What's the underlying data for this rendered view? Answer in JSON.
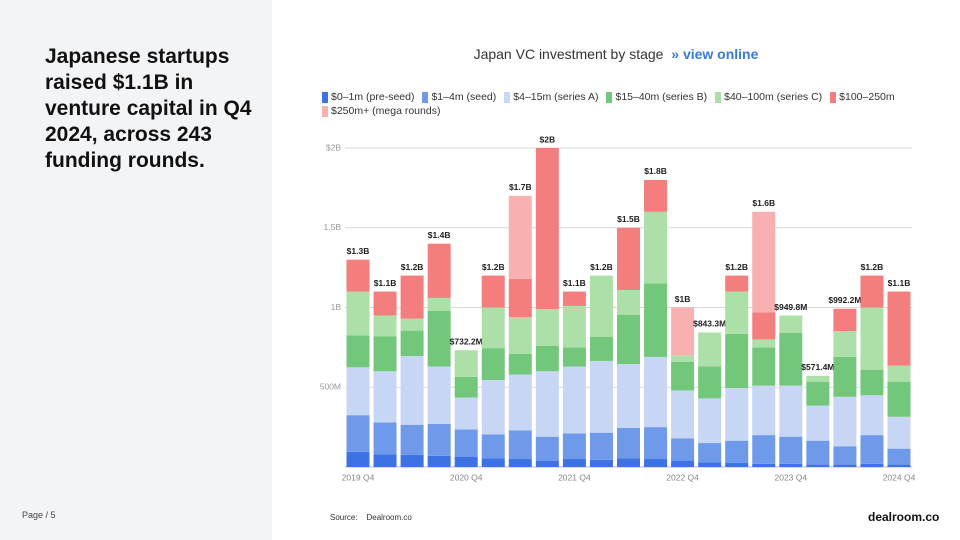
{
  "headline": "Japanese startups raised $1.1B in venture capital in Q4 2024, across 243 funding rounds.",
  "page": "Page / 5",
  "source_label": "Source:",
  "source": "Dealroom.co",
  "logo": "dealroom.co",
  "chart_data": {
    "type": "stacked_bar",
    "title": "Japan VC investment by stage",
    "link_marker": "»",
    "link": "view online",
    "categories": [
      "2019 Q4",
      null,
      null,
      null,
      "2020 Q4",
      null,
      null,
      null,
      "2021 Q4",
      null,
      null,
      null,
      "2022 Q4",
      null,
      null,
      null,
      "2023 Q4",
      null,
      null,
      null,
      "2024 Q4"
    ],
    "ylim": [
      0,
      2000
    ],
    "yticks": [
      {
        "value": 500,
        "label": "500M"
      },
      {
        "value": 1000,
        "label": "1B"
      },
      {
        "value": 1500,
        "label": "1.5B"
      },
      {
        "value": 2000,
        "label": "$2B"
      }
    ],
    "grid": true,
    "series": [
      {
        "name": "$0–1m (pre-seed)",
        "color": "#3d72e4",
        "values": [
          95,
          80,
          75,
          70,
          65,
          55,
          50,
          40,
          50,
          45,
          55,
          50,
          40,
          30,
          25,
          20,
          20,
          15,
          15,
          20,
          15
        ]
      },
      {
        "name": "$1–4m (seed)",
        "color": "#6f9ae9",
        "values": [
          230,
          200,
          190,
          200,
          170,
          150,
          180,
          150,
          160,
          170,
          190,
          200,
          140,
          120,
          140,
          180,
          170,
          150,
          115,
          180,
          100
        ]
      },
      {
        "name": "$4–15m (series A)",
        "color": "#c7d6f5",
        "values": [
          300,
          320,
          430,
          360,
          200,
          340,
          350,
          410,
          420,
          450,
          400,
          440,
          300,
          280,
          330,
          310,
          320,
          220,
          310,
          250,
          200
        ]
      },
      {
        "name": "$15–40m (series B)",
        "color": "#72c77b",
        "values": [
          200,
          220,
          160,
          350,
          130,
          200,
          130,
          160,
          120,
          150,
          310,
          460,
          180,
          200,
          340,
          240,
          330,
          150,
          250,
          160,
          220
        ]
      },
      {
        "name": "$40–100m (series C)",
        "color": "#addfa9",
        "values": [
          275,
          130,
          75,
          80,
          167.2,
          255,
          230,
          230,
          260,
          385,
          155,
          450,
          40,
          213.3,
          265,
          50,
          109.8,
          36.4,
          162.2,
          390,
          100
        ]
      },
      {
        "name": "$100–250m",
        "color": "#f47e7e",
        "values": [
          200,
          150,
          270,
          340,
          0,
          200,
          240,
          1010,
          90,
          0,
          390,
          200,
          0,
          0,
          100,
          170,
          0,
          0,
          140,
          200,
          465
        ]
      },
      {
        "name": "$250m+ (mega rounds)",
        "color": "#f8b0b0",
        "values": [
          0,
          0,
          0,
          0,
          0,
          0,
          520,
          0,
          0,
          0,
          0,
          0,
          300,
          0,
          0,
          630,
          0,
          0,
          0,
          0,
          0
        ]
      }
    ],
    "totals": {
      "values": [
        1300,
        1100,
        1200,
        1400,
        732.2,
        1200,
        1700,
        2000,
        1100,
        1200,
        1500,
        1800,
        1000,
        843.3,
        1200,
        1600,
        949.8,
        571.4,
        992.2,
        1200,
        1100
      ],
      "value_labels": [
        "$1.3B",
        "$1.1B",
        "$1.2B",
        "$1.4B",
        "$732.2M",
        "$1.2B",
        "$1.7B",
        "$2B",
        "$1.1B",
        "$1.2B",
        "$1.5B",
        "$1.8B",
        "$1B",
        "$843.3M",
        "$1.2B",
        "$1.6B",
        "$949.8M",
        "$571.4M",
        "$992.2M",
        "$1.2B",
        "$1.1B"
      ]
    }
  }
}
